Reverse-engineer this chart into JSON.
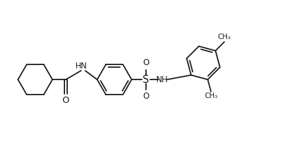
{
  "background_color": "#ffffff",
  "line_color": "#1a1a1a",
  "line_width": 1.3,
  "font_size": 8.5,
  "fig_width": 4.27,
  "fig_height": 2.16,
  "dpi": 100,
  "xlim": [
    0,
    10.5
  ],
  "ylim": [
    0,
    5.0
  ]
}
